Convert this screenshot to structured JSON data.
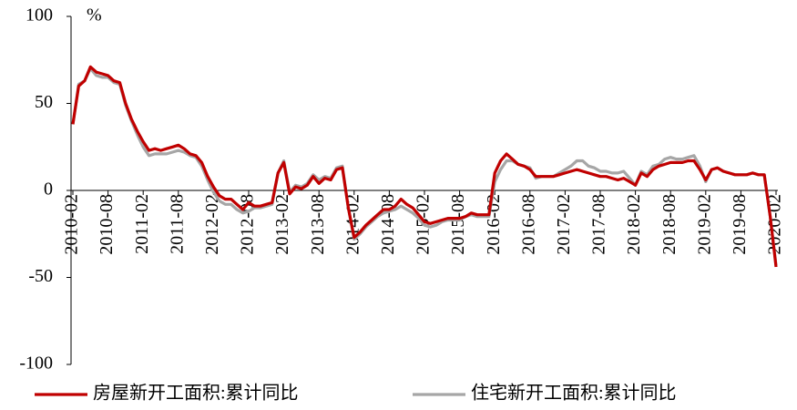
{
  "chart_data": {
    "type": "line",
    "ylabel": "%",
    "categories": [
      "2010-02",
      null,
      null,
      null,
      null,
      null,
      "2010-08",
      null,
      null,
      null,
      null,
      null,
      "2011-02",
      null,
      null,
      null,
      null,
      null,
      "2011-08",
      null,
      null,
      null,
      null,
      null,
      "2012-02",
      null,
      null,
      null,
      null,
      null,
      "2012-08",
      null,
      null,
      null,
      null,
      null,
      "2013-02",
      null,
      null,
      null,
      null,
      null,
      "2013-08",
      null,
      null,
      null,
      null,
      null,
      "2014-02",
      null,
      null,
      null,
      null,
      null,
      "2014-08",
      null,
      null,
      null,
      null,
      null,
      "2015-02",
      null,
      null,
      null,
      null,
      null,
      "2015-08",
      null,
      null,
      null,
      null,
      null,
      "2016-02",
      null,
      null,
      null,
      null,
      null,
      "2016-08",
      null,
      null,
      null,
      null,
      null,
      "2017-02",
      null,
      null,
      null,
      null,
      null,
      "2017-08",
      null,
      null,
      null,
      null,
      null,
      "2018-02",
      null,
      null,
      null,
      null,
      null,
      "2018-08",
      null,
      null,
      null,
      null,
      null,
      "2019-02",
      null,
      null,
      null,
      null,
      null,
      "2019-08",
      null,
      null,
      null,
      null,
      null,
      "2020-02"
    ],
    "series": [
      {
        "name": "房屋新开工面积:累计同比",
        "color": "#c00000",
        "values": [
          38,
          60,
          63,
          71,
          68,
          67,
          66,
          63,
          62,
          50,
          41,
          34,
          28,
          23,
          24,
          23,
          24,
          25,
          26,
          24,
          21,
          20,
          16,
          8,
          2,
          -3,
          -5,
          -5,
          -8,
          -11,
          -7,
          -9,
          -9,
          -8,
          -7,
          10,
          16,
          -2,
          2,
          1,
          3,
          8,
          4,
          7,
          6,
          12,
          13,
          -10,
          -27,
          -24,
          -20,
          -17,
          -14,
          -11,
          -11,
          -9,
          -5,
          -8,
          -10,
          -14,
          -18,
          -19,
          -18,
          -17,
          -16,
          -16,
          -16,
          -15,
          -13,
          -14,
          -14,
          -14,
          10,
          17,
          21,
          18,
          15,
          14,
          12,
          8,
          8,
          8,
          8,
          9,
          10,
          11,
          12,
          11,
          10,
          9,
          8,
          8,
          7,
          6,
          7,
          5,
          3,
          10,
          8,
          12,
          14,
          15,
          16,
          16,
          16,
          17,
          17,
          12,
          6,
          12,
          13,
          11,
          10,
          9,
          9,
          9,
          10,
          9,
          9,
          -15,
          -44
        ]
      },
      {
        "name": "住宅新开工面积:累计同比",
        "color": "#a6a6a6",
        "values": [
          38,
          61,
          63,
          70,
          66,
          65,
          65,
          62,
          61,
          49,
          40,
          32,
          25,
          20,
          21,
          21,
          21,
          22,
          23,
          22,
          20,
          19,
          14,
          6,
          -1,
          -6,
          -8,
          -8,
          -11,
          -13,
          -12,
          -10,
          -10,
          -9,
          -8,
          10,
          17,
          -1,
          3,
          2,
          4,
          9,
          6,
          8,
          7,
          13,
          14,
          -10,
          -28,
          -25,
          -21,
          -18,
          -15,
          -13,
          -12,
          -11,
          -9,
          -11,
          -13,
          -16,
          -20,
          -21,
          -20,
          -18,
          -17,
          -17,
          -17,
          -15,
          -14,
          -15,
          -15,
          -15,
          5,
          12,
          17,
          17,
          15,
          14,
          13,
          7,
          8,
          8,
          8,
          10,
          12,
          14,
          17,
          17,
          14,
          13,
          11,
          11,
          10,
          10,
          11,
          7,
          3,
          11,
          9,
          14,
          15,
          18,
          19,
          18,
          18,
          19,
          20,
          14,
          5,
          12,
          13,
          11,
          10,
          9,
          9,
          9,
          10,
          9,
          9,
          -15,
          -43
        ]
      }
    ],
    "ylim": [
      -100,
      100
    ],
    "yticks": [
      -100,
      -50,
      0,
      50,
      100
    ],
    "grid": false
  }
}
